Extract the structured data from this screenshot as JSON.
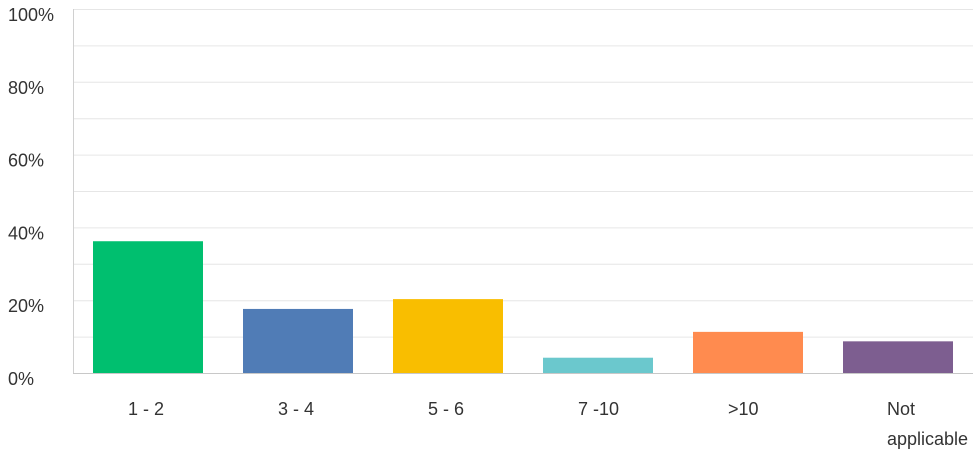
{
  "chart_data": {
    "type": "bar",
    "title": "",
    "xlabel": "",
    "ylabel": "",
    "ylim": [
      0,
      100
    ],
    "yticks": [
      "0%",
      "20%",
      "40%",
      "60%",
      "80%",
      "100%"
    ],
    "grid": true,
    "categories": [
      "1 - 2",
      "3 - 4",
      "5 - 6",
      "7 -10",
      ">10",
      "Not applicable"
    ],
    "category_lines": [
      [
        "1 - 2"
      ],
      [
        "3 - 4"
      ],
      [
        "5 - 6"
      ],
      [
        "7 -10"
      ],
      [
        ">10"
      ],
      [
        "Not",
        "applicable"
      ]
    ],
    "values": [
      36.2,
      17.6,
      20.3,
      4.2,
      11.3,
      8.7
    ],
    "colors": [
      "#00bf6f",
      "#507cb6",
      "#f9be00",
      "#6bc8cd",
      "#ff8b4f",
      "#7d5e90"
    ]
  }
}
